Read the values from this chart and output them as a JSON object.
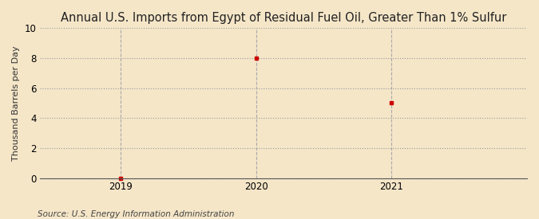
{
  "title": "Annual U.S. Imports from Egypt of Residual Fuel Oil, Greater Than 1% Sulfur",
  "ylabel": "Thousand Barrels per Day",
  "source": "Source: U.S. Energy Information Administration",
  "x_values": [
    2019,
    2020,
    2021
  ],
  "y_values": [
    0,
    8,
    5
  ],
  "xlim": [
    2018.4,
    2022.0
  ],
  "ylim": [
    0,
    10
  ],
  "yticks": [
    0,
    2,
    4,
    6,
    8,
    10
  ],
  "xticks": [
    2019,
    2020,
    2021
  ],
  "marker_color": "#cc0000",
  "bg_color": "#f5e6c8",
  "plot_bg_color": "#f5e6c8",
  "grid_color": "#999999",
  "vgrid_color": "#aaaaaa",
  "title_fontsize": 10.5,
  "label_fontsize": 8,
  "source_fontsize": 7.5,
  "tick_fontsize": 8.5
}
